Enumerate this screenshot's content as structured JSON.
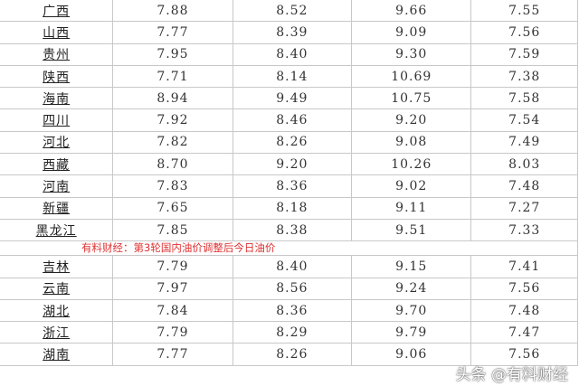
{
  "rows": [
    [
      "广西",
      "7.88",
      "8.52",
      "9.66",
      "7.55"
    ],
    [
      "山西",
      "7.77",
      "8.39",
      "9.09",
      "7.56"
    ],
    [
      "贵州",
      "7.95",
      "8.40",
      "9.30",
      "7.59"
    ],
    [
      "陕西",
      "7.71",
      "8.14",
      "10.69",
      "7.38"
    ],
    [
      "海南",
      "8.94",
      "9.49",
      "10.75",
      "7.58"
    ],
    [
      "四川",
      "7.92",
      "8.46",
      "9.20",
      "7.54"
    ],
    [
      "河北",
      "7.82",
      "8.26",
      "9.08",
      "7.49"
    ],
    [
      "西藏",
      "8.70",
      "9.20",
      "10.26",
      "8.03"
    ],
    [
      "河南",
      "7.83",
      "8.36",
      "9.02",
      "7.48"
    ],
    [
      "新疆",
      "7.65",
      "8.18",
      "9.11",
      "7.27"
    ],
    [
      "黑龙江",
      "7.85",
      "8.38",
      "9.51",
      "7.33"
    ],
    [
      "吉林",
      "7.79",
      "8.40",
      "9.15",
      "7.41"
    ],
    [
      "云南",
      "7.97",
      "8.56",
      "9.24",
      "7.56"
    ],
    [
      "湖北",
      "7.84",
      "8.36",
      "9.70",
      "7.48"
    ],
    [
      "浙江",
      "7.79",
      "8.29",
      "9.79",
      "7.47"
    ],
    [
      "湖南",
      "7.77",
      "8.26",
      "9.06",
      "7.56"
    ]
  ],
  "caption": "有料财经：第3轮国内油价调整后今日油价",
  "watermark": "头条 @有料财经"
}
